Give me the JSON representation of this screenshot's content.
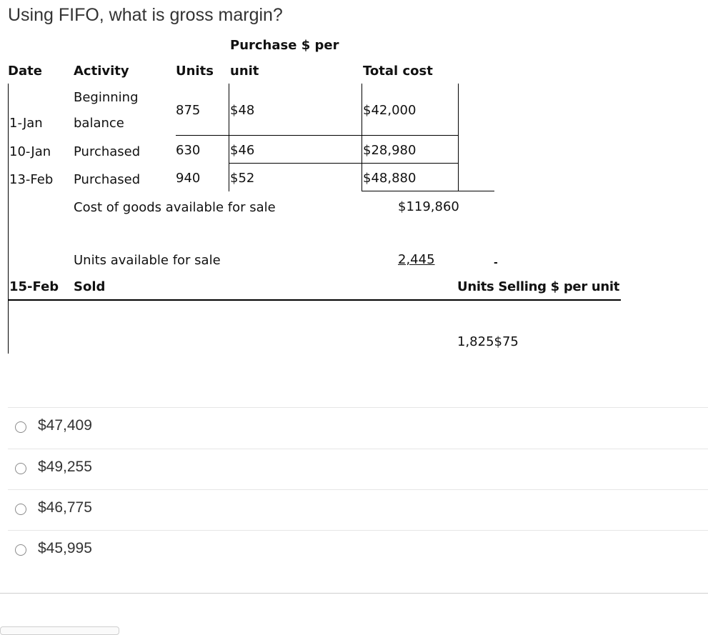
{
  "question": "Using FIFO, what is gross margin?",
  "table": {
    "header": {
      "purchase_line1": "Purchase $ per",
      "date": "Date",
      "activity": "Activity",
      "units": "Units",
      "unit": "unit",
      "total_cost": "Total cost"
    },
    "rows": [
      {
        "date": "1-Jan",
        "activity_line1": "Beginning",
        "activity_line2": "balance",
        "units": "875",
        "price": "$48",
        "total": "$42,000"
      },
      {
        "date": "10-Jan",
        "activity": "Purchased",
        "units": "630",
        "price": "$46",
        "total": "$28,980"
      },
      {
        "date": "13-Feb",
        "activity": "Purchased",
        "units": "940",
        "price": "$52",
        "total": "$48,880"
      }
    ],
    "cogs_label": "Cost of goods available for sale",
    "cogs_value": "$119,860",
    "units_label": "Units available for sale",
    "units_value": "2,445",
    "dash": "-",
    "sold_date": "15-Feb",
    "sold_label": "Sold",
    "sold_header": "Units Selling $ per unit",
    "sold_values": "1,825$75"
  },
  "options": [
    "$47,409",
    "$49,255",
    "$46,775",
    "$45,995"
  ]
}
